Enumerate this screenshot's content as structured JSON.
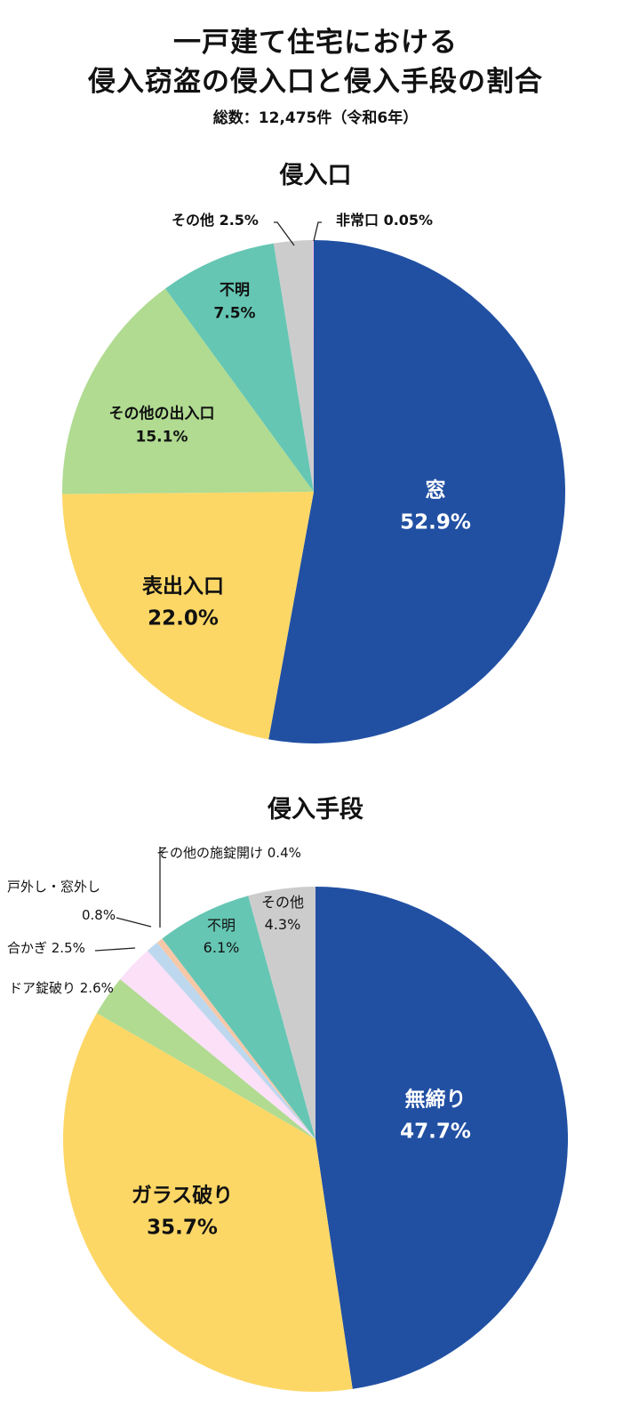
{
  "header": {
    "title_line1": "一戸建て住宅における",
    "title_line2": "侵入窃盗の侵入口と侵入手段の割合",
    "subtitle": "総数：12,475件（令和6年）"
  },
  "chart_data": [
    {
      "type": "pie",
      "title": "侵入口",
      "start": "top",
      "direction": "clockwise",
      "unit": "%",
      "categories": [
        "窓",
        "表出入口",
        "その他の出入口",
        "不明",
        "その他",
        "非常口"
      ],
      "values": [
        52.9,
        22.0,
        15.1,
        7.5,
        2.5,
        0.05
      ],
      "colors": [
        "#2150A3",
        "#FDD766",
        "#B0DB91",
        "#65C6B3",
        "#CDCCCD",
        "#F0B8E8"
      ],
      "labels": [
        {
          "name": "窓",
          "value": "52.9%"
        },
        {
          "name": "表出入口",
          "value": "22.0%"
        },
        {
          "name": "その他の出入口",
          "value": "15.1%"
        },
        {
          "name": "不明",
          "value": "7.5%"
        },
        {
          "name": "その他",
          "value": "2.5%",
          "text": "その他 2.5%"
        },
        {
          "name": "非常口",
          "value": "0.05%",
          "text": "非常口 0.05%"
        }
      ]
    },
    {
      "type": "pie",
      "title": "侵入手段",
      "start": "top",
      "direction": "clockwise",
      "unit": "%",
      "categories": [
        "無締り",
        "ガラス破り",
        "ドア錠破り",
        "合かぎ",
        "戸外し・窓外し",
        "その他の施錠開け",
        "不明",
        "その他"
      ],
      "values": [
        47.7,
        35.7,
        2.6,
        2.5,
        0.8,
        0.4,
        6.1,
        4.3
      ],
      "colors": [
        "#2150A3",
        "#FDD766",
        "#B0DB91",
        "#FBE0F8",
        "#BDD7EE",
        "#F7C8A8",
        "#65C6B3",
        "#CDCCCD"
      ],
      "labels": [
        {
          "name": "無締り",
          "value": "47.7%"
        },
        {
          "name": "ガラス破り",
          "value": "35.7%"
        },
        {
          "name": "ドア錠破り",
          "value": "2.6%",
          "text": "ドア錠破り 2.6%"
        },
        {
          "name": "合かぎ",
          "value": "2.5%",
          "text": "合かぎ 2.5%"
        },
        {
          "name": "戸外し・窓外し",
          "value": "0.8%",
          "text": "戸外し・窓外し"
        },
        {
          "name": "その他の施錠開け",
          "value": "0.4%",
          "text": "その他の施錠開け 0.4%"
        },
        {
          "name": "不明",
          "value": "6.1%"
        },
        {
          "name": "その他",
          "value": "4.3%"
        }
      ]
    }
  ]
}
